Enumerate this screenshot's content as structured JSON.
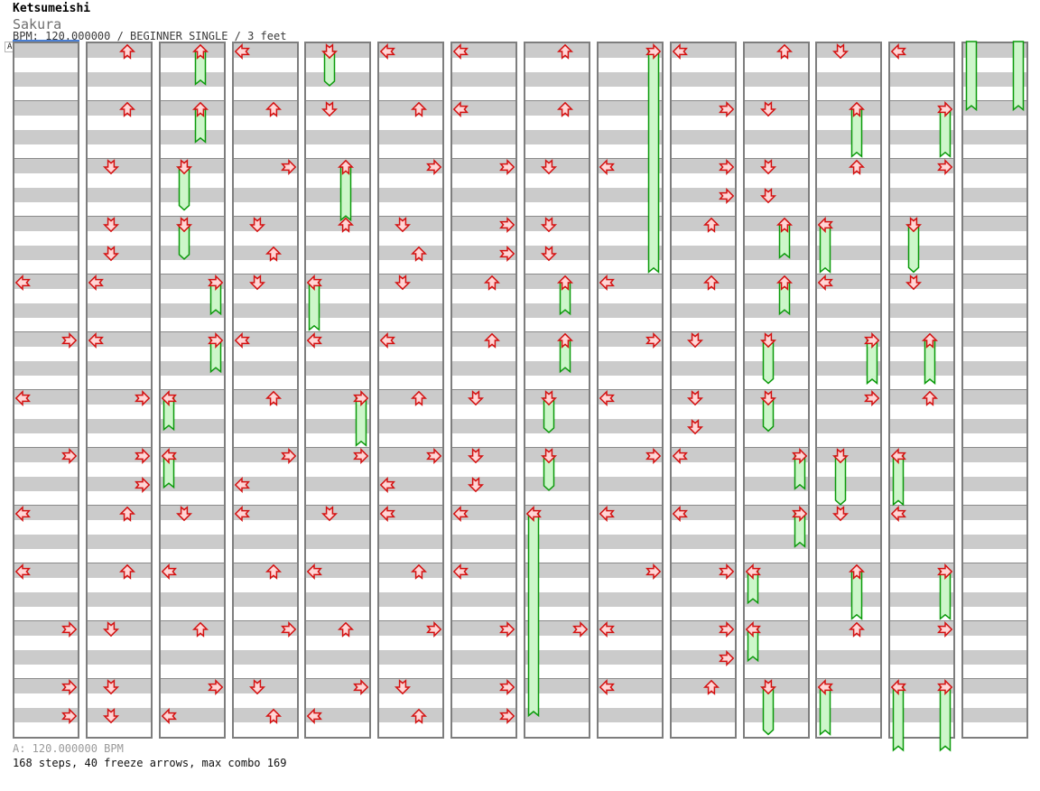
{
  "header": {
    "artist": "Ketsumeishi",
    "song_title": "Sakura",
    "chart_info": "BPM: 120.000000 / BEGINNER SINGLE / 3 feet"
  },
  "bpm_marker": {
    "label": "A"
  },
  "footer": {
    "marker_info": "A: 120.000000 BPM",
    "stats": "168 steps, 40 freeze arrows, max combo 169"
  },
  "colors": {
    "stripe": "#cbcbcb",
    "column_border": "#7e7e7e",
    "measure_line": "#8a8a8a",
    "arrow_red": "#d41010",
    "arrow_fill": "#ffd6d6",
    "freeze_green": "#0a9a0a",
    "freeze_fill": "#cdf6ca",
    "bpm_line_blue": "#4a7fd4"
  },
  "chart": {
    "columns": 14,
    "measures_per_column": 12,
    "beats_per_measure": 4,
    "lanes": [
      "left",
      "down",
      "up",
      "right"
    ],
    "taps": [
      [
        0,
        16,
        0
      ],
      [
        0,
        20,
        3
      ],
      [
        0,
        24,
        0
      ],
      [
        0,
        28,
        3
      ],
      [
        0,
        32,
        0
      ],
      [
        0,
        36,
        0
      ],
      [
        0,
        40,
        3
      ],
      [
        0,
        44,
        3
      ],
      [
        0,
        46,
        3
      ],
      [
        1,
        0,
        2
      ],
      [
        1,
        4,
        2
      ],
      [
        1,
        8,
        1
      ],
      [
        1,
        12,
        1
      ],
      [
        1,
        14,
        1
      ],
      [
        1,
        16,
        0
      ],
      [
        1,
        20,
        0
      ],
      [
        1,
        24,
        3
      ],
      [
        1,
        28,
        3
      ],
      [
        1,
        30,
        3
      ],
      [
        1,
        32,
        2
      ],
      [
        1,
        36,
        2
      ],
      [
        1,
        40,
        1
      ],
      [
        1,
        44,
        1
      ],
      [
        1,
        46,
        1
      ],
      [
        2,
        32,
        1
      ],
      [
        2,
        36,
        0
      ],
      [
        2,
        40,
        2
      ],
      [
        2,
        44,
        3
      ],
      [
        2,
        46,
        0
      ],
      [
        3,
        0,
        0
      ],
      [
        3,
        4,
        2
      ],
      [
        3,
        8,
        3
      ],
      [
        3,
        12,
        1
      ],
      [
        3,
        14,
        2
      ],
      [
        3,
        16,
        1
      ],
      [
        3,
        20,
        0
      ],
      [
        3,
        24,
        2
      ],
      [
        3,
        28,
        3
      ],
      [
        3,
        30,
        0
      ],
      [
        3,
        32,
        0
      ],
      [
        3,
        36,
        2
      ],
      [
        3,
        40,
        3
      ],
      [
        3,
        44,
        1
      ],
      [
        3,
        46,
        2
      ],
      [
        4,
        4,
        1
      ],
      [
        4,
        12,
        2
      ],
      [
        4,
        20,
        0
      ],
      [
        4,
        28,
        3
      ],
      [
        4,
        32,
        1
      ],
      [
        4,
        36,
        0
      ],
      [
        4,
        40,
        2
      ],
      [
        4,
        44,
        3
      ],
      [
        4,
        46,
        0
      ],
      [
        5,
        0,
        0
      ],
      [
        5,
        4,
        2
      ],
      [
        5,
        8,
        3
      ],
      [
        5,
        12,
        1
      ],
      [
        5,
        14,
        2
      ],
      [
        5,
        16,
        1
      ],
      [
        5,
        20,
        0
      ],
      [
        5,
        24,
        2
      ],
      [
        5,
        28,
        3
      ],
      [
        5,
        30,
        0
      ],
      [
        5,
        32,
        0
      ],
      [
        5,
        36,
        2
      ],
      [
        5,
        40,
        3
      ],
      [
        5,
        44,
        1
      ],
      [
        5,
        46,
        2
      ],
      [
        6,
        0,
        0
      ],
      [
        6,
        4,
        0
      ],
      [
        6,
        8,
        3
      ],
      [
        6,
        12,
        3
      ],
      [
        6,
        14,
        3
      ],
      [
        6,
        16,
        2
      ],
      [
        6,
        20,
        2
      ],
      [
        6,
        24,
        1
      ],
      [
        6,
        28,
        1
      ],
      [
        6,
        30,
        1
      ],
      [
        6,
        32,
        0
      ],
      [
        6,
        36,
        0
      ],
      [
        6,
        40,
        3
      ],
      [
        6,
        44,
        3
      ],
      [
        6,
        46,
        3
      ],
      [
        7,
        0,
        2
      ],
      [
        7,
        4,
        2
      ],
      [
        7,
        8,
        1
      ],
      [
        7,
        12,
        1
      ],
      [
        7,
        14,
        1
      ],
      [
        7,
        40,
        3
      ],
      [
        8,
        8,
        0
      ],
      [
        8,
        16,
        0
      ],
      [
        8,
        20,
        3
      ],
      [
        8,
        24,
        0
      ],
      [
        8,
        28,
        3
      ],
      [
        8,
        32,
        0
      ],
      [
        8,
        36,
        3
      ],
      [
        8,
        40,
        0
      ],
      [
        8,
        44,
        0
      ],
      [
        9,
        0,
        0
      ],
      [
        9,
        4,
        3
      ],
      [
        9,
        8,
        3
      ],
      [
        9,
        10,
        3
      ],
      [
        9,
        12,
        2
      ],
      [
        9,
        16,
        2
      ],
      [
        9,
        20,
        1
      ],
      [
        9,
        24,
        1
      ],
      [
        9,
        26,
        1
      ],
      [
        9,
        28,
        0
      ],
      [
        9,
        32,
        0
      ],
      [
        9,
        36,
        3
      ],
      [
        9,
        40,
        3
      ],
      [
        9,
        42,
        3
      ],
      [
        9,
        44,
        2
      ],
      [
        10,
        0,
        2
      ],
      [
        10,
        4,
        1
      ],
      [
        10,
        8,
        1
      ],
      [
        10,
        10,
        1
      ],
      [
        11,
        0,
        1
      ],
      [
        11,
        8,
        2
      ],
      [
        11,
        16,
        0
      ],
      [
        11,
        24,
        3
      ],
      [
        11,
        32,
        1
      ],
      [
        11,
        40,
        2
      ],
      [
        12,
        0,
        0
      ],
      [
        12,
        8,
        3
      ],
      [
        12,
        16,
        1
      ],
      [
        12,
        24,
        2
      ],
      [
        12,
        32,
        0
      ],
      [
        12,
        40,
        3
      ]
    ],
    "freezes": [
      [
        2,
        0,
        2,
        2.8
      ],
      [
        2,
        4,
        2,
        6.8
      ],
      [
        2,
        8,
        1,
        11.5
      ],
      [
        2,
        12,
        1,
        14.9
      ],
      [
        2,
        16,
        3,
        18.7
      ],
      [
        2,
        20,
        3,
        22.7
      ],
      [
        2,
        24,
        0,
        26.7
      ],
      [
        2,
        28,
        0,
        30.7
      ],
      [
        4,
        0,
        1,
        2.9
      ],
      [
        4,
        8,
        2,
        12.2
      ],
      [
        4,
        16,
        0,
        19.8
      ],
      [
        4,
        24,
        3,
        27.8
      ],
      [
        7,
        16,
        2,
        18.7
      ],
      [
        7,
        20,
        2,
        22.7
      ],
      [
        7,
        24,
        1,
        26.9
      ],
      [
        7,
        28,
        1,
        30.9
      ],
      [
        7,
        32,
        0,
        46.5
      ],
      [
        8,
        0,
        3,
        15.8
      ],
      [
        10,
        12,
        2,
        14.8
      ],
      [
        10,
        16,
        2,
        18.7
      ],
      [
        10,
        20,
        1,
        23.5
      ],
      [
        10,
        24,
        1,
        26.8
      ],
      [
        10,
        28,
        3,
        30.8
      ],
      [
        10,
        32,
        3,
        34.8
      ],
      [
        10,
        36,
        0,
        38.7
      ],
      [
        10,
        40,
        0,
        42.7
      ],
      [
        10,
        44,
        1,
        47.8
      ],
      [
        11,
        4,
        2,
        7.8
      ],
      [
        11,
        12,
        0,
        15.8
      ],
      [
        11,
        20,
        3,
        23.5
      ],
      [
        11,
        28,
        1,
        31.9
      ],
      [
        11,
        36,
        2,
        39.8
      ],
      [
        11,
        44,
        0,
        47.8
      ],
      [
        12,
        4,
        3,
        7.8
      ],
      [
        12,
        12,
        1,
        15.8
      ],
      [
        12,
        20,
        2,
        23.5
      ],
      [
        12,
        28,
        0,
        31.9
      ],
      [
        12,
        36,
        3,
        39.8
      ],
      [
        12,
        44,
        0,
        48.9
      ],
      [
        12,
        44,
        3,
        48.9
      ]
    ],
    "continued_bodies": [
      [
        13,
        0,
        0,
        4.6
      ],
      [
        13,
        0,
        3,
        4.6
      ]
    ]
  }
}
